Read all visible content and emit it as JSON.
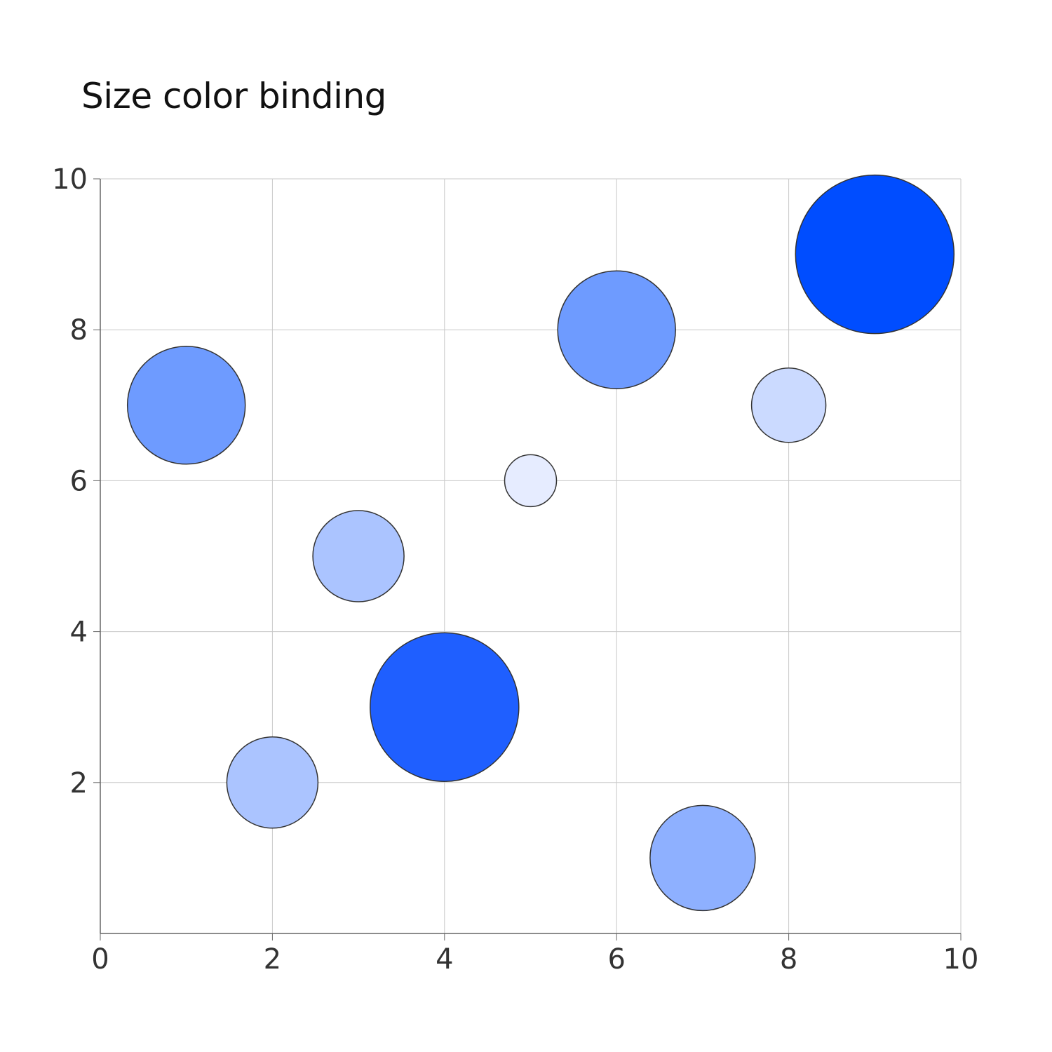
{
  "chart_data": {
    "type": "scatter",
    "subtype": "bubble",
    "title": "Size color binding",
    "xlabel": "",
    "ylabel": "",
    "xlim": [
      0,
      10
    ],
    "ylim": [
      0,
      10
    ],
    "x_ticks": [
      "0",
      "2",
      "4",
      "6",
      "8",
      "10"
    ],
    "y_ticks": [
      "2",
      "4",
      "6",
      "8",
      "10"
    ],
    "grid": true,
    "legend": "none",
    "points": [
      {
        "x": 1,
        "y": 7,
        "size": 84,
        "color": "#6e9bff"
      },
      {
        "x": 2,
        "y": 2,
        "size": 65,
        "color": "#abc4ff"
      },
      {
        "x": 3,
        "y": 5,
        "size": 65,
        "color": "#abc4ff"
      },
      {
        "x": 4,
        "y": 3,
        "size": 106,
        "color": "#1f5fff"
      },
      {
        "x": 5,
        "y": 6,
        "size": 37,
        "color": "#e6ecff"
      },
      {
        "x": 6,
        "y": 8,
        "size": 84,
        "color": "#6e9bff"
      },
      {
        "x": 7,
        "y": 1,
        "size": 75,
        "color": "#8eb0ff"
      },
      {
        "x": 8,
        "y": 7,
        "size": 53,
        "color": "#cbdaff"
      },
      {
        "x": 9,
        "y": 9,
        "size": 113,
        "color": "#004dff"
      }
    ],
    "colors": {
      "grid": "#c8c8c8",
      "axis": "#666666",
      "bubble_stroke": "#333333"
    }
  }
}
